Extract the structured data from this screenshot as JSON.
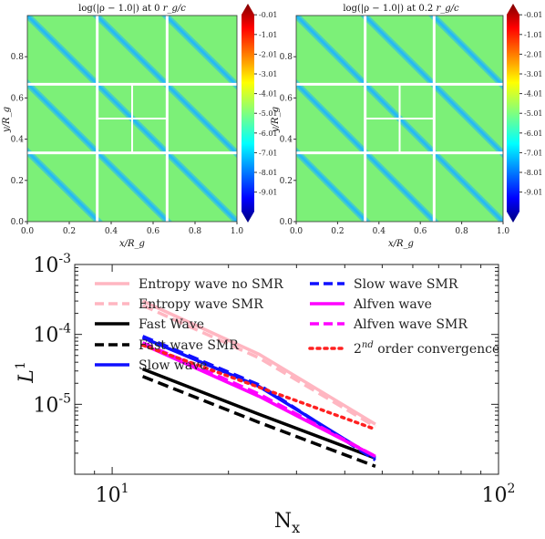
{
  "chart_data": [
    {
      "type": "heatmap",
      "title": "log(|ρ − 1.0|) at 0 r_g/c",
      "title_parts": {
        "text": "log(|ρ − 1.0|) at 0",
        "unit": "r_g/c"
      },
      "xlabel": "x/R_g",
      "ylabel": "y/R_g",
      "xlim": [
        0,
        1
      ],
      "ylim": [
        0,
        1
      ],
      "xticks": [
        "0.0",
        "0.2",
        "0.4",
        "0.6",
        "0.8",
        "1.0"
      ],
      "yticks": [
        "0.0",
        "0.2",
        "0.4",
        "0.6",
        "0.8"
      ],
      "colorbar": {
        "ticks": [
          "-0.01",
          "-1.01",
          "-2.01",
          "-3.01",
          "-4.01",
          "-5.01",
          "-6.01",
          "-7.01",
          "-8.01",
          "-9.01"
        ],
        "range": [
          -10,
          0
        ],
        "colormap": "jet"
      },
      "background_color": "#7CF078",
      "stripe_color": "#1EB4FF",
      "grid_color": "#ffffff",
      "mesh_refinement": "3x3 blocks, center block refined into 2x2"
    },
    {
      "type": "heatmap",
      "title": "log(|ρ − 1.0|) at 0.2 r_g/c",
      "title_parts": {
        "text": "log(|ρ − 1.0|) at 0.2",
        "unit": "r_g/c"
      },
      "xlabel": "x/R_g",
      "ylabel": "y/R_g",
      "xlim": [
        0,
        1
      ],
      "ylim": [
        0,
        1
      ],
      "xticks": [
        "0.0",
        "0.2",
        "0.4",
        "0.6",
        "0.8",
        "1.0"
      ],
      "yticks": [
        "0.0",
        "0.2",
        "0.4",
        "0.6",
        "0.8"
      ],
      "colorbar": {
        "ticks": [
          "-0.01",
          "-1.01",
          "-2.01",
          "-3.01",
          "-4.01",
          "-5.01",
          "-6.01",
          "-7.01",
          "-8.01",
          "-9.01"
        ],
        "range": [
          -10,
          0
        ],
        "colormap": "jet"
      },
      "background_color": "#7CF078",
      "stripe_color": "#1EB4FF",
      "grid_color": "#ffffff",
      "mesh_refinement": "3x3 blocks, center block refined into 2x2"
    },
    {
      "type": "line",
      "xlabel": "N_x",
      "ylabel": "L^1",
      "xscale": "log",
      "yscale": "log",
      "xlim": [
        8,
        100
      ],
      "ylim": [
        1e-06,
        0.001
      ],
      "xtick_labels": [
        {
          "mantissa": "10",
          "exp": "1"
        },
        {
          "mantissa": "10",
          "exp": "2"
        }
      ],
      "ytick_labels": [
        {
          "mantissa": "10",
          "exp": "-3"
        },
        {
          "mantissa": "10",
          "exp": "-4"
        },
        {
          "mantissa": "10",
          "exp": "-5"
        }
      ],
      "legend_placement": "top",
      "series": [
        {
          "name": "Entropy wave no SMR",
          "color": "#FFB6C1",
          "style": "solid",
          "x": [
            12,
            24,
            48
          ],
          "y": [
            0.0003,
            5.2e-05,
            5.2e-06
          ]
        },
        {
          "name": "Entropy wave SMR",
          "color": "#FFB6C1",
          "style": "dashed",
          "x": [
            12,
            24,
            48
          ],
          "y": [
            0.00026,
            4.6e-05,
            4.8e-06
          ]
        },
        {
          "name": "Fast Wave",
          "color": "#000000",
          "style": "solid",
          "x": [
            12,
            24,
            48
          ],
          "y": [
            3.2e-05,
            7.2e-06,
            1.7e-06
          ]
        },
        {
          "name": "Fast wave SMR",
          "color": "#000000",
          "style": "dashed",
          "x": [
            12,
            24,
            48
          ],
          "y": [
            2.5e-05,
            5.5e-06,
            1.3e-06
          ]
        },
        {
          "name": "Slow wave",
          "color": "#1010FF",
          "style": "solid",
          "x": [
            12,
            24,
            48
          ],
          "y": [
            9e-05,
            1.8e-05,
            1.7e-06
          ]
        },
        {
          "name": "Slow wave SMR",
          "color": "#1010FF",
          "style": "dashed",
          "x": [
            12,
            24,
            48
          ],
          "y": [
            9.4e-05,
            1.9e-05,
            1.6e-06
          ]
        },
        {
          "name": "Alfven wave",
          "color": "#FF00FF",
          "style": "solid",
          "x": [
            12,
            24,
            48
          ],
          "y": [
            7.2e-05,
            1.3e-05,
            1.8e-06
          ]
        },
        {
          "name": "Alfven wave SMR",
          "color": "#FF00FF",
          "style": "dashed",
          "x": [
            12,
            24,
            48
          ],
          "y": [
            7.6e-05,
            1.4e-05,
            1.8e-06
          ]
        },
        {
          "name": "2nd order convergence",
          "name_parts": {
            "base": "2",
            "sup": "nd",
            "rest": " order convergence"
          },
          "color": "#FF2020",
          "style": "dotted",
          "x": [
            12,
            48
          ],
          "y": [
            7e-05,
            4.4e-06
          ]
        }
      ]
    }
  ]
}
